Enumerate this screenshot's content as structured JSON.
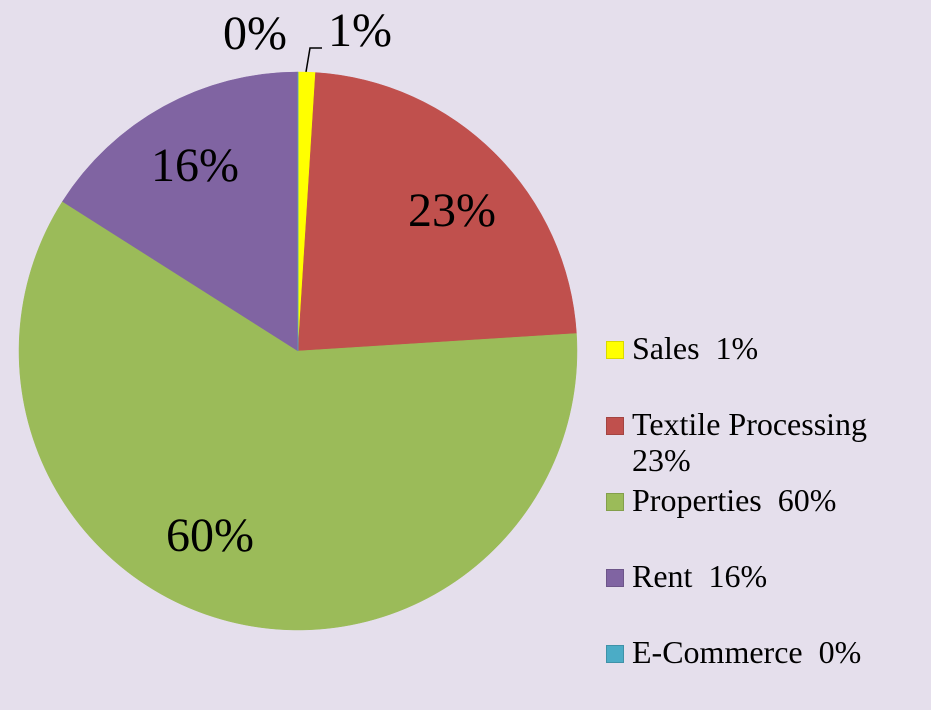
{
  "chart_data": {
    "type": "pie",
    "categories": [
      "Sales  1%",
      "Textile Processing 23%",
      "Properties  60%",
      "Rent  16%",
      "E-Commerce  0%"
    ],
    "values": [
      1,
      23,
      60,
      16,
      0
    ],
    "value_labels": [
      "1%",
      "23%",
      "60%",
      "16%",
      "0%"
    ],
    "colors": [
      "#ffff00",
      "#c0504d",
      "#9bbb59",
      "#8064a2",
      "#4bacc6"
    ],
    "legend": "right"
  }
}
